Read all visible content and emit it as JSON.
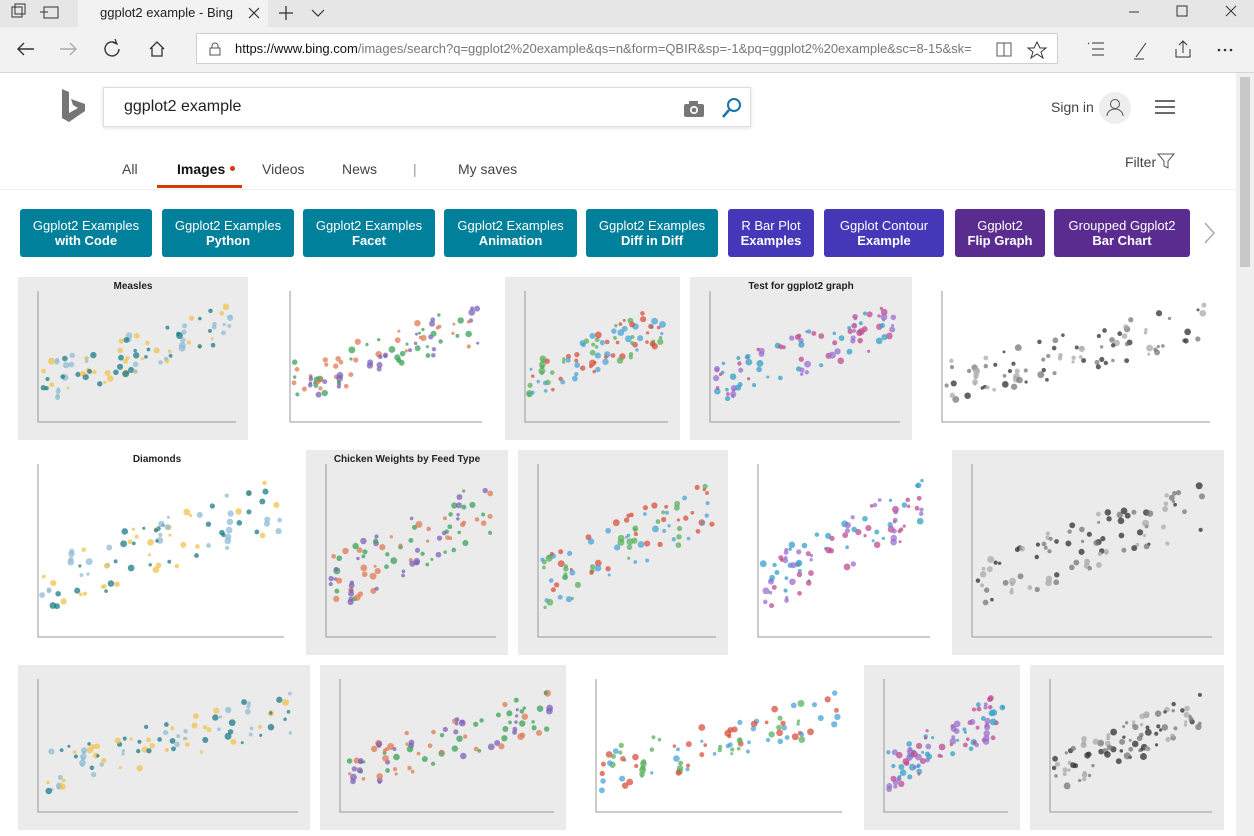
{
  "browser": {
    "tab_title": "ggplot2 example - Bing",
    "url_host": "https://www.bing.com",
    "url_path": "/images/search?q=ggplot2%20example&qs=n&form=QBIR&sp=-1&pq=ggplot2%20example&sc=8-15&sk="
  },
  "header": {
    "query": "ggplot2 example",
    "sign_in": "Sign in"
  },
  "nav": {
    "items": [
      "All",
      "Images",
      "Videos",
      "News",
      "|",
      "My saves"
    ],
    "filter": "Filter"
  },
  "chips": [
    {
      "line1": "Ggplot2 Examples",
      "line2": "with Code"
    },
    {
      "line1": "Ggplot2 Examples",
      "line2": "Python"
    },
    {
      "line1": "Ggplot2 Examples",
      "line2": "Facet"
    },
    {
      "line1": "Ggplot2 Examples",
      "line2": "Animation"
    },
    {
      "line1": "Ggplot2 Examples",
      "line2": "Diff in Diff"
    },
    {
      "line1": "R Bar Plot",
      "line2": "Examples"
    },
    {
      "line1": "Ggplot Contour",
      "line2": "Example"
    },
    {
      "line1": "Ggplot2",
      "line2": "Flip Graph"
    },
    {
      "line1": "Groupped Ggplot2",
      "line2": "Bar Chart"
    }
  ],
  "results": [
    {
      "title": "Measles"
    },
    {
      "title": "Test for ggplot2 graph"
    },
    {
      "title": "Diamonds"
    },
    {
      "title": "Chicken Weights by Feed Type"
    }
  ]
}
